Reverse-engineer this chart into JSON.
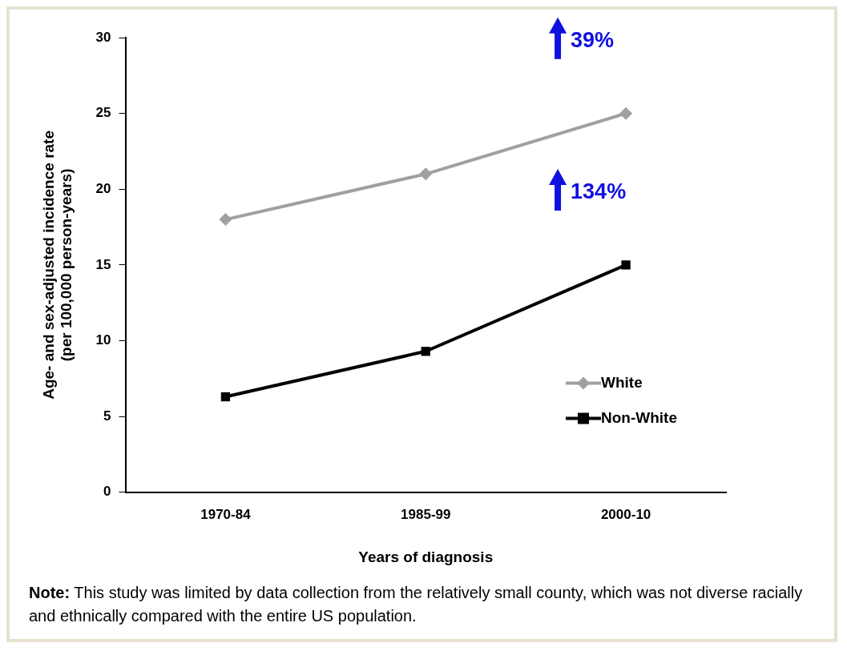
{
  "chart_data": {
    "type": "line",
    "xlabel": "Years of diagnosis",
    "ylabel": "Age- and sex-adjusted incidence rate\n(per 100,000 person-years)",
    "categories": [
      "1970-84",
      "1985-99",
      "2000-10"
    ],
    "series": [
      {
        "name": "White",
        "color": "#a0a0a0",
        "values": [
          18,
          21,
          25
        ],
        "marker": "diamond"
      },
      {
        "name": "Non-White",
        "color": "#000000",
        "values": [
          6.3,
          9.3,
          15
        ],
        "marker": "square"
      }
    ],
    "ylim": [
      0,
      30
    ],
    "yticks": [
      0,
      5,
      10,
      15,
      20,
      25,
      30
    ],
    "grid": false,
    "legend": "right",
    "line_style": "solid",
    "annotations": [
      "39%",
      "134%",
      "Note: This study was limited by data collection from the relatively small county, which was not diverse racially and ethnically compared with the entire US population."
    ]
  }
}
